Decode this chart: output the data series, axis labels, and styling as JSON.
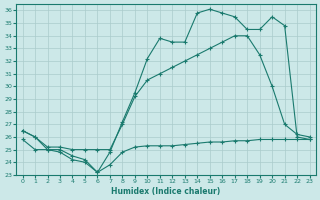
{
  "xlabel": "Humidex (Indice chaleur)",
  "bg_color": "#cce8e8",
  "grid_color": "#aacccc",
  "line_color": "#1a7a6e",
  "xlim": [
    -0.5,
    23.5
  ],
  "ylim": [
    23,
    36.5
  ],
  "xticks": [
    0,
    1,
    2,
    3,
    4,
    5,
    6,
    7,
    8,
    9,
    10,
    11,
    12,
    13,
    14,
    15,
    16,
    17,
    18,
    19,
    20,
    21,
    22,
    23
  ],
  "yticks": [
    23,
    24,
    25,
    26,
    27,
    28,
    29,
    30,
    31,
    32,
    33,
    34,
    35,
    36
  ],
  "line1_x": [
    0,
    1,
    2,
    3,
    4,
    5,
    6,
    7,
    8,
    9,
    10,
    11,
    12,
    13,
    14,
    15,
    16,
    17,
    18,
    19,
    20,
    21,
    22,
    23
  ],
  "line1_y": [
    26.5,
    26.0,
    25.0,
    25.0,
    24.5,
    24.2,
    23.2,
    24.8,
    27.2,
    29.5,
    32.2,
    33.8,
    33.5,
    33.5,
    35.8,
    36.1,
    35.8,
    35.5,
    34.5,
    34.5,
    35.5,
    34.8,
    26.0,
    25.8
  ],
  "line2_x": [
    0,
    1,
    2,
    3,
    4,
    5,
    6,
    7,
    8,
    9,
    10,
    11,
    12,
    13,
    14,
    15,
    16,
    17,
    18,
    19,
    20,
    21,
    22,
    23
  ],
  "line2_y": [
    26.5,
    26.0,
    25.2,
    25.2,
    25.0,
    25.0,
    25.0,
    25.0,
    27.0,
    29.2,
    30.5,
    31.0,
    31.5,
    32.0,
    32.5,
    33.0,
    33.5,
    34.0,
    34.0,
    32.5,
    30.0,
    27.0,
    26.2,
    26.0
  ],
  "line3_x": [
    0,
    1,
    2,
    3,
    4,
    5,
    6,
    7,
    8,
    9,
    10,
    11,
    12,
    13,
    14,
    15,
    16,
    17,
    18,
    19,
    20,
    21,
    22,
    23
  ],
  "line3_y": [
    25.8,
    25.0,
    25.0,
    24.8,
    24.2,
    24.0,
    23.2,
    23.8,
    24.8,
    25.2,
    25.3,
    25.3,
    25.3,
    25.4,
    25.5,
    25.6,
    25.6,
    25.7,
    25.7,
    25.8,
    25.8,
    25.8,
    25.8,
    25.8
  ]
}
